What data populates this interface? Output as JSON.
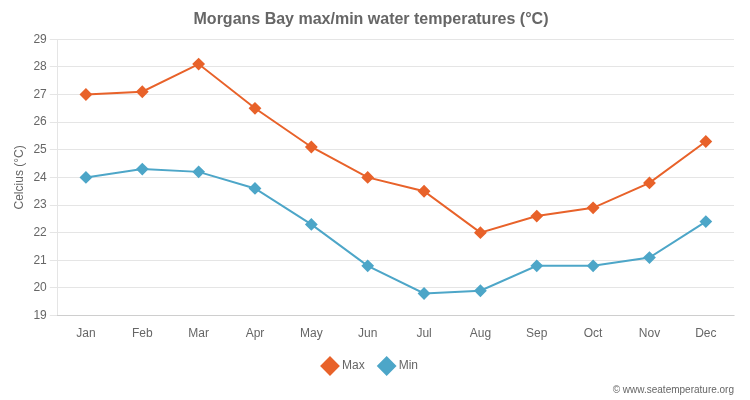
{
  "chart_data": {
    "type": "line",
    "title": "Morgans Bay max/min water temperatures (°C)",
    "ylabel": "Celcius (°C)",
    "categories": [
      "Jan",
      "Feb",
      "Mar",
      "Apr",
      "May",
      "Jun",
      "Jul",
      "Aug",
      "Sep",
      "Oct",
      "Nov",
      "Dec"
    ],
    "series": [
      {
        "name": "Max",
        "color": "#e8622a",
        "marker": "diamond",
        "line_style": "solid",
        "values": [
          27.0,
          27.1,
          28.1,
          26.5,
          25.1,
          24.0,
          23.5,
          22.0,
          22.6,
          22.9,
          23.8,
          25.3
        ]
      },
      {
        "name": "Min",
        "color": "#4da6c8",
        "marker": "diamond",
        "line_style": "solid",
        "values": [
          24.0,
          24.3,
          24.2,
          23.6,
          22.3,
          20.8,
          19.8,
          19.9,
          20.8,
          20.8,
          21.1,
          22.4
        ]
      }
    ],
    "ylim": [
      19,
      29
    ],
    "yticks": [
      19,
      20,
      21,
      22,
      23,
      24,
      25,
      26,
      27,
      28,
      29
    ],
    "grid": "y",
    "legend": "bottom",
    "annotations": [
      "© www.seatemperature.org"
    ]
  }
}
